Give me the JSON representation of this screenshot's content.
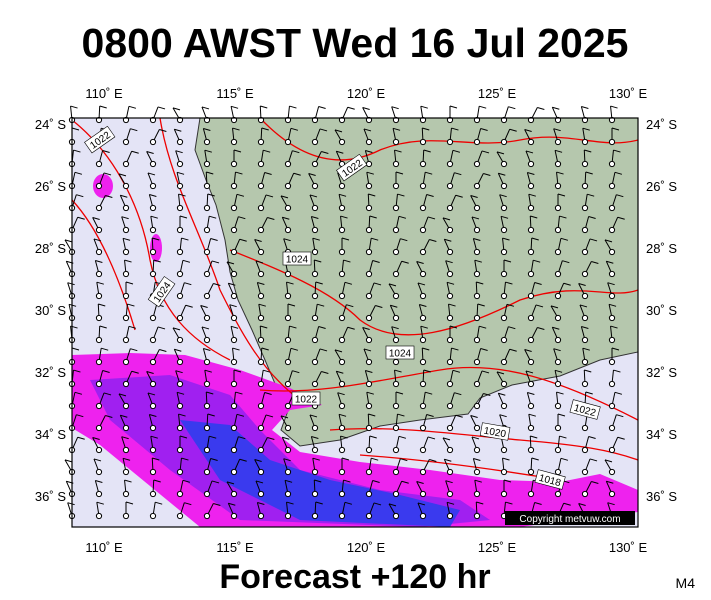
{
  "header": {
    "title": "0800 AWST Wed 16 Jul 2025"
  },
  "map": {
    "lon_labels": [
      "110˚ E",
      "115˚ E",
      "120˚ E",
      "125˚ E",
      "130˚ E"
    ],
    "lat_labels": [
      "24˚ S",
      "26˚ S",
      "28˚ S",
      "30˚ S",
      "32˚ S",
      "34˚ S",
      "36˚ S"
    ],
    "isobar_labels": [
      "1022",
      "1022",
      "1024",
      "1024",
      "1024",
      "1022",
      "1022",
      "1020",
      "1018"
    ],
    "copyright": "Copyright metvuw.com"
  },
  "footer": {
    "caption": "Forecast +120 hr",
    "code": "M4"
  }
}
